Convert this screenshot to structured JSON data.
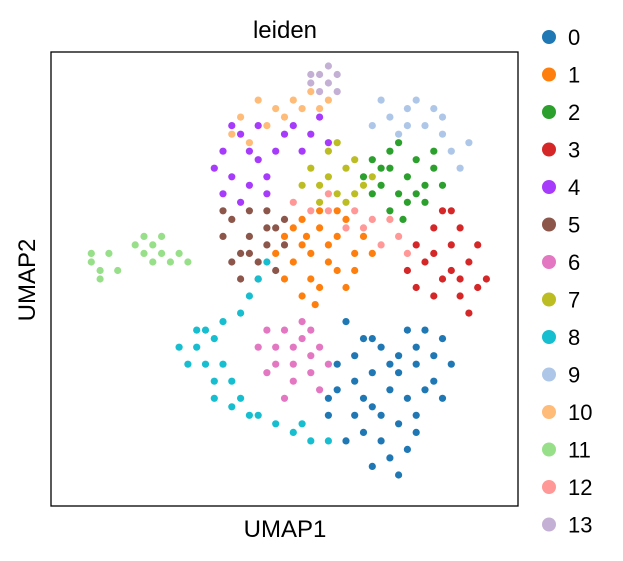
{
  "chart_data": {
    "type": "scatter",
    "title": "leiden",
    "xlabel": "UMAP1",
    "ylabel": "UMAP2",
    "xlim": [
      0,
      100
    ],
    "ylim": [
      0,
      100
    ],
    "grid": false,
    "ticks": false,
    "legend": {
      "placement": "outside-right",
      "title": ""
    },
    "series": [
      {
        "name": "0",
        "color": "#1f77b4",
        "points": [
          [
            64,
            40
          ],
          [
            68,
            36
          ],
          [
            72,
            34
          ],
          [
            76,
            32
          ],
          [
            80,
            30
          ],
          [
            84,
            32
          ],
          [
            86,
            36
          ],
          [
            70,
            28
          ],
          [
            66,
            26
          ],
          [
            74,
            24
          ],
          [
            78,
            22
          ],
          [
            82,
            24
          ],
          [
            70,
            20
          ],
          [
            76,
            16
          ],
          [
            72,
            12
          ],
          [
            68,
            14
          ],
          [
            74,
            8
          ],
          [
            78,
            10
          ],
          [
            80,
            18
          ],
          [
            84,
            26
          ],
          [
            66,
            32
          ],
          [
            62,
            24
          ],
          [
            60,
            18
          ],
          [
            64,
            12
          ],
          [
            70,
            6
          ],
          [
            76,
            4
          ],
          [
            80,
            14
          ],
          [
            88,
            30
          ],
          [
            82,
            38
          ],
          [
            74,
            30
          ],
          [
            68,
            22
          ],
          [
            62,
            30
          ],
          [
            86,
            22
          ],
          [
            60,
            22
          ],
          [
            72,
            18
          ],
          [
            76,
            28
          ],
          [
            80,
            34
          ],
          [
            66,
            18
          ],
          [
            70,
            36
          ],
          [
            78,
            38
          ]
        ]
      },
      {
        "name": "1",
        "color": "#ff7f0e",
        "points": [
          [
            54,
            58
          ],
          [
            58,
            62
          ],
          [
            62,
            60
          ],
          [
            66,
            56
          ],
          [
            60,
            54
          ],
          [
            56,
            50
          ],
          [
            52,
            54
          ],
          [
            50,
            60
          ],
          [
            54,
            64
          ],
          [
            58,
            66
          ],
          [
            64,
            64
          ],
          [
            68,
            60
          ],
          [
            62,
            52
          ],
          [
            58,
            48
          ],
          [
            54,
            46
          ],
          [
            50,
            50
          ],
          [
            60,
            58
          ],
          [
            66,
            52
          ],
          [
            56,
            56
          ],
          [
            52,
            62
          ],
          [
            64,
            48
          ],
          [
            70,
            56
          ],
          [
            57,
            44
          ],
          [
            62,
            66
          ],
          [
            48,
            56
          ],
          [
            55,
            60
          ]
        ]
      },
      {
        "name": "2",
        "color": "#2ca02c",
        "points": [
          [
            70,
            78
          ],
          [
            74,
            76
          ],
          [
            78,
            74
          ],
          [
            82,
            72
          ],
          [
            76,
            70
          ],
          [
            72,
            72
          ],
          [
            68,
            74
          ],
          [
            74,
            80
          ],
          [
            80,
            78
          ],
          [
            84,
            76
          ],
          [
            78,
            68
          ],
          [
            74,
            66
          ],
          [
            82,
            68
          ],
          [
            70,
            70
          ],
          [
            76,
            82
          ],
          [
            86,
            72
          ],
          [
            72,
            76
          ],
          [
            80,
            70
          ],
          [
            77,
            64
          ],
          [
            84,
            80
          ]
        ]
      },
      {
        "name": "3",
        "color": "#d62728",
        "points": [
          [
            84,
            62
          ],
          [
            88,
            58
          ],
          [
            92,
            54
          ],
          [
            94,
            48
          ],
          [
            90,
            46
          ],
          [
            86,
            50
          ],
          [
            82,
            54
          ],
          [
            80,
            58
          ],
          [
            86,
            66
          ],
          [
            90,
            62
          ],
          [
            94,
            58
          ],
          [
            88,
            52
          ],
          [
            84,
            46
          ],
          [
            92,
            42
          ],
          [
            96,
            50
          ],
          [
            80,
            48
          ],
          [
            88,
            66
          ],
          [
            84,
            56
          ],
          [
            90,
            50
          ],
          [
            78,
            52
          ]
        ]
      },
      {
        "name": "4",
        "color": "#a63bfb",
        "points": [
          [
            36,
            80
          ],
          [
            40,
            84
          ],
          [
            44,
            78
          ],
          [
            38,
            74
          ],
          [
            42,
            72
          ],
          [
            46,
            74
          ],
          [
            34,
            76
          ],
          [
            38,
            86
          ],
          [
            44,
            86
          ],
          [
            48,
            80
          ],
          [
            52,
            86
          ],
          [
            56,
            84
          ],
          [
            58,
            88
          ],
          [
            54,
            80
          ],
          [
            36,
            70
          ],
          [
            40,
            68
          ],
          [
            46,
            70
          ],
          [
            50,
            84
          ],
          [
            60,
            82
          ],
          [
            42,
            80
          ]
        ]
      },
      {
        "name": "5",
        "color": "#8c564b",
        "points": [
          [
            38,
            64
          ],
          [
            42,
            60
          ],
          [
            46,
            58
          ],
          [
            40,
            56
          ],
          [
            44,
            54
          ],
          [
            48,
            62
          ],
          [
            36,
            60
          ],
          [
            42,
            66
          ],
          [
            46,
            66
          ],
          [
            50,
            58
          ],
          [
            38,
            54
          ],
          [
            44,
            50
          ],
          [
            48,
            52
          ],
          [
            40,
            50
          ],
          [
            46,
            62
          ],
          [
            36,
            66
          ],
          [
            50,
            64
          ],
          [
            42,
            56
          ]
        ]
      },
      {
        "name": "6",
        "color": "#e377c2",
        "points": [
          [
            50,
            38
          ],
          [
            54,
            36
          ],
          [
            56,
            32
          ],
          [
            52,
            30
          ],
          [
            48,
            34
          ],
          [
            46,
            38
          ],
          [
            52,
            26
          ],
          [
            56,
            28
          ],
          [
            58,
            34
          ],
          [
            54,
            40
          ],
          [
            48,
            30
          ],
          [
            44,
            34
          ],
          [
            58,
            24
          ],
          [
            60,
            30
          ],
          [
            50,
            22
          ],
          [
            46,
            28
          ],
          [
            56,
            38
          ],
          [
            52,
            34
          ]
        ]
      },
      {
        "name": "7",
        "color": "#bcbd22",
        "points": [
          [
            60,
            74
          ],
          [
            64,
            76
          ],
          [
            68,
            72
          ],
          [
            62,
            70
          ],
          [
            58,
            72
          ],
          [
            56,
            76
          ],
          [
            60,
            80
          ],
          [
            66,
            78
          ],
          [
            64,
            68
          ],
          [
            58,
            68
          ],
          [
            70,
            74
          ],
          [
            62,
            82
          ],
          [
            54,
            72
          ],
          [
            66,
            70
          ]
        ]
      },
      {
        "name": "8",
        "color": "#17becf",
        "points": [
          [
            30,
            34
          ],
          [
            32,
            30
          ],
          [
            34,
            26
          ],
          [
            28,
            30
          ],
          [
            30,
            38
          ],
          [
            34,
            36
          ],
          [
            36,
            30
          ],
          [
            38,
            26
          ],
          [
            40,
            22
          ],
          [
            42,
            18
          ],
          [
            44,
            18
          ],
          [
            48,
            16
          ],
          [
            52,
            14
          ],
          [
            56,
            12
          ],
          [
            60,
            12
          ],
          [
            40,
            42
          ],
          [
            42,
            46
          ],
          [
            36,
            40
          ],
          [
            32,
            38
          ],
          [
            44,
            50
          ],
          [
            46,
            54
          ],
          [
            34,
            22
          ],
          [
            38,
            20
          ],
          [
            54,
            16
          ],
          [
            26,
            34
          ]
        ]
      },
      {
        "name": "9",
        "color": "#aec7e8",
        "points": [
          [
            70,
            86
          ],
          [
            74,
            88
          ],
          [
            78,
            90
          ],
          [
            82,
            86
          ],
          [
            86,
            84
          ],
          [
            80,
            92
          ],
          [
            76,
            84
          ],
          [
            84,
            90
          ],
          [
            88,
            80
          ],
          [
            90,
            76
          ],
          [
            72,
            92
          ],
          [
            86,
            88
          ],
          [
            92,
            82
          ],
          [
            78,
            86
          ]
        ]
      },
      {
        "name": "10",
        "color": "#ffbb78",
        "points": [
          [
            40,
            88
          ],
          [
            44,
            92
          ],
          [
            48,
            90
          ],
          [
            52,
            92
          ],
          [
            56,
            94
          ],
          [
            60,
            92
          ],
          [
            46,
            86
          ],
          [
            42,
            82
          ],
          [
            50,
            88
          ],
          [
            54,
            90
          ],
          [
            38,
            84
          ],
          [
            58,
            90
          ]
        ]
      },
      {
        "name": "11",
        "color": "#98df8a",
        "points": [
          [
            6,
            54
          ],
          [
            8,
            52
          ],
          [
            10,
            56
          ],
          [
            12,
            52
          ],
          [
            8,
            50
          ],
          [
            6,
            56
          ],
          [
            16,
            58
          ],
          [
            18,
            56
          ],
          [
            20,
            58
          ],
          [
            22,
            56
          ],
          [
            24,
            54
          ],
          [
            26,
            56
          ],
          [
            20,
            54
          ],
          [
            18,
            60
          ],
          [
            22,
            60
          ],
          [
            28,
            54
          ]
        ]
      },
      {
        "name": "12",
        "color": "#ff9896",
        "points": [
          [
            56,
            66
          ],
          [
            60,
            66
          ],
          [
            64,
            62
          ],
          [
            68,
            62
          ],
          [
            72,
            58
          ],
          [
            76,
            60
          ],
          [
            52,
            68
          ],
          [
            70,
            64
          ],
          [
            78,
            56
          ],
          [
            60,
            70
          ],
          [
            74,
            64
          ],
          [
            66,
            66
          ]
        ]
      },
      {
        "name": "13",
        "color": "#c5b0d5",
        "points": [
          [
            56,
            96
          ],
          [
            58,
            98
          ],
          [
            60,
            96
          ],
          [
            62,
            98
          ],
          [
            58,
            94
          ],
          [
            62,
            94
          ],
          [
            60,
            100
          ],
          [
            56,
            98
          ]
        ]
      }
    ]
  }
}
